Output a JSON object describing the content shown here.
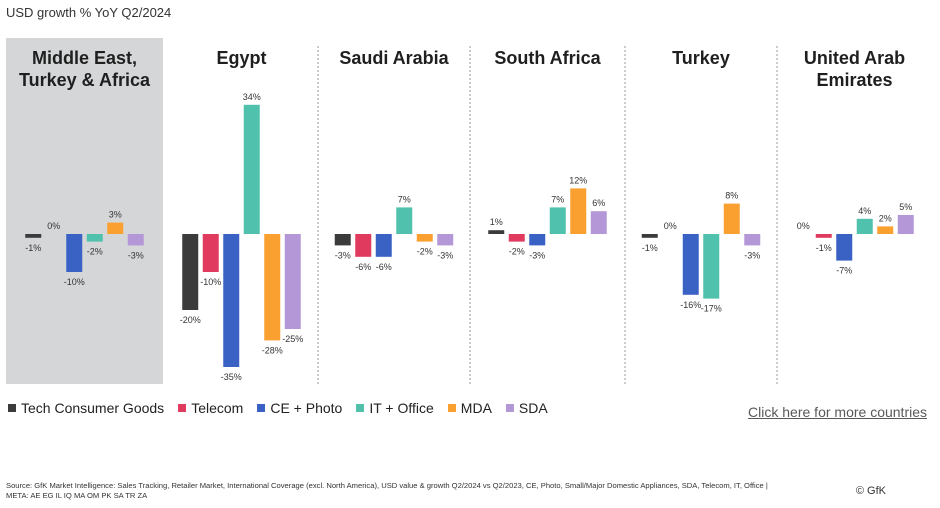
{
  "page": {
    "title": "USD growth % YoY Q2/2024",
    "link_label": "Click here for more countries",
    "source_line1": "Source: GfK Market Intelligence: Sales Tracking, Retailer Market, International Coverage (excl. North America), USD value & growth Q2/2024 vs Q2/2023, CE, Photo, Small/Major Domestic Appliances, SDA, Telecom, IT, Office |",
    "source_line2": "META: AE EG IL IQ MA OM PK SA TR ZA",
    "copyright": "© GfK"
  },
  "chart_data": {
    "type": "bar",
    "title": "USD growth % YoY Q2/2024",
    "value_unit": "%",
    "ylim": [
      -38,
      38
    ],
    "grid": false,
    "legend_position": "bottom-left",
    "highlighted_group": "Middle East, Turkey & Africa",
    "series": [
      {
        "name": "Tech Consumer Goods",
        "color": "#3b3b3b"
      },
      {
        "name": "Telecom",
        "color": "#e03a5f"
      },
      {
        "name": "CE + Photo",
        "color": "#3a62c4"
      },
      {
        "name": "IT + Office",
        "color": "#4fc1ad"
      },
      {
        "name": "MDA",
        "color": "#f9a030"
      },
      {
        "name": "SDA",
        "color": "#b497d6"
      }
    ],
    "groups": [
      {
        "name_lines": [
          "Middle East,",
          "Turkey & Africa"
        ],
        "values": [
          -1,
          0,
          -10,
          -2,
          3,
          -3
        ],
        "labels": [
          "-1%",
          "0%",
          "-10%",
          "-2%",
          "3%",
          "-3%"
        ]
      },
      {
        "name_lines": [
          "Egypt"
        ],
        "values": [
          -20,
          -10,
          -35,
          34,
          -28,
          -25
        ],
        "labels": [
          "-20%",
          "-10%",
          "-35%",
          "34%",
          "-28%",
          "-25%"
        ]
      },
      {
        "name_lines": [
          "Saudi Arabia"
        ],
        "values": [
          -3,
          -6,
          -6,
          7,
          -2,
          -3
        ],
        "labels": [
          "-3%",
          "-6%",
          "-6%",
          "7%",
          "-2%",
          "-3%"
        ]
      },
      {
        "name_lines": [
          "South Africa"
        ],
        "values": [
          1,
          -2,
          -3,
          7,
          12,
          6
        ],
        "labels": [
          "1%",
          "-2%",
          "-3%",
          "7%",
          "12%",
          "6%"
        ]
      },
      {
        "name_lines": [
          "Turkey"
        ],
        "values": [
          -1,
          0,
          -16,
          -17,
          8,
          -3
        ],
        "labels": [
          "-1%",
          "0%",
          "-16%",
          "-17%",
          "8%",
          "-3%"
        ]
      },
      {
        "name_lines": [
          "United Arab",
          "Emirates"
        ],
        "values": [
          0,
          -1,
          -7,
          4,
          2,
          5
        ],
        "labels": [
          "0%",
          "-1%",
          "-7%",
          "4%",
          "2%",
          "5%"
        ]
      }
    ]
  }
}
